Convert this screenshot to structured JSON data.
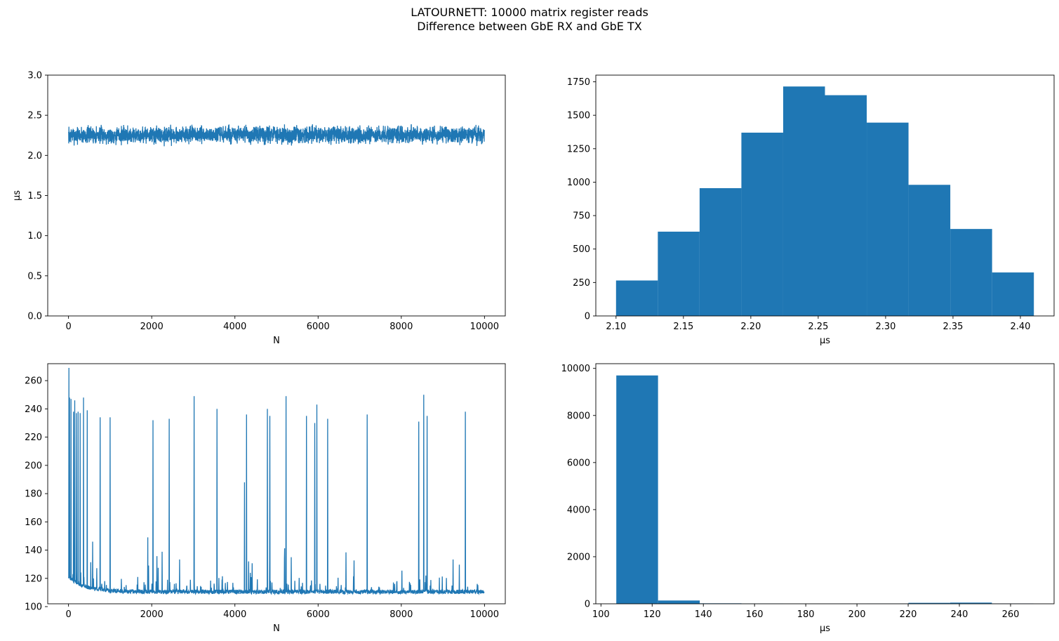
{
  "figure": {
    "title_line1": "LATOURNETT: 10000 matrix register reads",
    "title_line2": "Difference between GbE RX and GbE TX",
    "series_color": "#1f77b4"
  },
  "chart_data": [
    {
      "id": "rx-tx-trace",
      "type": "line",
      "xlabel": "N",
      "ylabel": "µs",
      "xlim": [
        -500,
        10500
      ],
      "ylim": [
        0,
        3.0
      ],
      "xticks": [
        0,
        2000,
        4000,
        6000,
        8000,
        10000
      ],
      "yticks": [
        0.0,
        0.5,
        1.0,
        1.5,
        2.0,
        2.5,
        3.0
      ],
      "ytick_labels": [
        "0.0",
        "0.5",
        "1.0",
        "1.5",
        "2.0",
        "2.5",
        "3.0"
      ],
      "n_points": 10000,
      "value_range": [
        2.1,
        2.41
      ],
      "grid": false
    },
    {
      "id": "rx-tx-histogram",
      "type": "bar",
      "xlabel": "µs",
      "ylabel": "",
      "xlim": [
        2.085,
        2.425
      ],
      "ylim": [
        0,
        1800
      ],
      "xticks": [
        2.1,
        2.15,
        2.2,
        2.25,
        2.3,
        2.35,
        2.4
      ],
      "xtick_labels": [
        "2.10",
        "2.15",
        "2.20",
        "2.25",
        "2.30",
        "2.35",
        "2.40"
      ],
      "yticks": [
        0,
        250,
        500,
        750,
        1000,
        1250,
        1500,
        1750
      ],
      "bin_edges": [
        2.1,
        2.131,
        2.162,
        2.193,
        2.224,
        2.255,
        2.286,
        2.317,
        2.348,
        2.379,
        2.41
      ],
      "counts": [
        265,
        630,
        955,
        1370,
        1715,
        1650,
        1445,
        980,
        650,
        325
      ],
      "grid": false
    },
    {
      "id": "reads-trace",
      "type": "line",
      "xlabel": "N",
      "ylabel": "",
      "xlim": [
        -500,
        10500
      ],
      "ylim": [
        102,
        272
      ],
      "xticks": [
        0,
        2000,
        4000,
        6000,
        8000,
        10000
      ],
      "yticks": [
        100,
        120,
        140,
        160,
        180,
        200,
        220,
        240,
        260
      ],
      "n_points": 10000,
      "baseline_start": 120,
      "baseline_end": 109,
      "spikes": [
        [
          10,
          269
        ],
        [
          25,
          248
        ],
        [
          60,
          247
        ],
        [
          120,
          238
        ],
        [
          150,
          246
        ],
        [
          190,
          237
        ],
        [
          230,
          238
        ],
        [
          280,
          237
        ],
        [
          360,
          248
        ],
        [
          450,
          239
        ],
        [
          580,
          146
        ],
        [
          760,
          234
        ],
        [
          1000,
          234
        ],
        [
          2030,
          232
        ],
        [
          2420,
          233
        ],
        [
          3020,
          249
        ],
        [
          3570,
          240
        ],
        [
          4230,
          188
        ],
        [
          4280,
          236
        ],
        [
          4780,
          240
        ],
        [
          4840,
          235
        ],
        [
          5230,
          249
        ],
        [
          5720,
          235
        ],
        [
          5920,
          230
        ],
        [
          5970,
          243
        ],
        [
          6230,
          233
        ],
        [
          7180,
          236
        ],
        [
          8420,
          231
        ],
        [
          8540,
          250
        ],
        [
          8620,
          235
        ],
        [
          9540,
          238
        ]
      ],
      "grid": false
    },
    {
      "id": "reads-histogram",
      "type": "bar",
      "xlabel": "µs",
      "ylabel": "",
      "xlim": [
        98,
        277
      ],
      "ylim": [
        0,
        10200
      ],
      "xticks": [
        100,
        120,
        140,
        160,
        180,
        200,
        220,
        240,
        260
      ],
      "yticks": [
        0,
        2000,
        4000,
        6000,
        8000,
        10000
      ],
      "bin_edges": [
        106.0,
        122.3,
        138.6,
        154.9,
        171.2,
        187.5,
        203.8,
        220.1,
        236.4,
        252.7,
        269.0
      ],
      "counts": [
        9700,
        140,
        20,
        10,
        6,
        5,
        8,
        40,
        50,
        12
      ],
      "grid": false
    }
  ]
}
